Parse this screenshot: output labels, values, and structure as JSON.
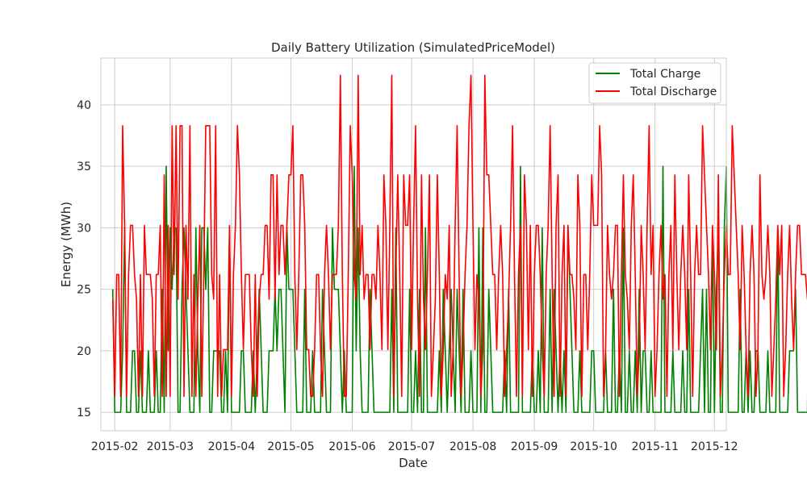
{
  "chart_data": {
    "type": "line",
    "title": "Daily Battery Utilization (SimulatedPriceModel)",
    "xlabel": "Date",
    "ylabel": "Energy (MWh)",
    "x_start": "2015-01-31",
    "x_end": "2015-12-01",
    "xlim": [
      "2015-01-25",
      "2015-12-07"
    ],
    "ylim": [
      13.5,
      43.8
    ],
    "x_ticks": [
      {
        "date": "2015-02-01",
        "label": "2015-02"
      },
      {
        "date": "2015-03-01",
        "label": "2015-03"
      },
      {
        "date": "2015-04-01",
        "label": "2015-04"
      },
      {
        "date": "2015-05-01",
        "label": "2015-05"
      },
      {
        "date": "2015-06-01",
        "label": "2015-06"
      },
      {
        "date": "2015-07-01",
        "label": "2015-07"
      },
      {
        "date": "2015-08-01",
        "label": "2015-08"
      },
      {
        "date": "2015-09-01",
        "label": "2015-09"
      },
      {
        "date": "2015-10-01",
        "label": "2015-10"
      },
      {
        "date": "2015-11-01",
        "label": "2015-11"
      },
      {
        "date": "2015-12-01",
        "label": "2015-12"
      }
    ],
    "y_ticks": [
      15,
      20,
      25,
      30,
      35,
      40
    ],
    "grid": true,
    "legend_position": "top-right",
    "series": [
      {
        "name": "Total Charge",
        "color": "#008000",
        "values": [
          25,
          15,
          15,
          15,
          15,
          20,
          30,
          15,
          15,
          15,
          20,
          20,
          15,
          15,
          20,
          15,
          15,
          15,
          20,
          15,
          15,
          15,
          20,
          15,
          15,
          25,
          15,
          35,
          20,
          30,
          25,
          30,
          30,
          15,
          15,
          25,
          30,
          25,
          20,
          15,
          15,
          15,
          30,
          20,
          15,
          30,
          30,
          25,
          30,
          15,
          15,
          20,
          20,
          20,
          20,
          15,
          15,
          20,
          15,
          30,
          15,
          15,
          15,
          15,
          15,
          20,
          20,
          15,
          15,
          15,
          15,
          20,
          15,
          20,
          25,
          20,
          15,
          15,
          15,
          20,
          20,
          20,
          25,
          20,
          25,
          25,
          20,
          15,
          30,
          25,
          25,
          25,
          20,
          15,
          15,
          15,
          15,
          25,
          15,
          15,
          15,
          20,
          15,
          15,
          15,
          15,
          25,
          20,
          15,
          15,
          15,
          30,
          25,
          25,
          25,
          20,
          15,
          20,
          15,
          15,
          15,
          15,
          35,
          20,
          30,
          20,
          15,
          15,
          15,
          15,
          25,
          20,
          15,
          15,
          15,
          15,
          15,
          15,
          15,
          15,
          15,
          25,
          15,
          30,
          15,
          15,
          15,
          15,
          15,
          15,
          25,
          15,
          15,
          20,
          15,
          25,
          15,
          15,
          30,
          15,
          15,
          15,
          15,
          15,
          15,
          20,
          15,
          25,
          20,
          15,
          20,
          25,
          20,
          15,
          25,
          20,
          15,
          25,
          15,
          15,
          15,
          20,
          15,
          15,
          15,
          30,
          15,
          30,
          15,
          15,
          25,
          20,
          15,
          15,
          15,
          15,
          15,
          15,
          20,
          15,
          25,
          15,
          15,
          15,
          15,
          15,
          35,
          15,
          15,
          15,
          15,
          15,
          20,
          15,
          15,
          20,
          15,
          30,
          15,
          15,
          15,
          25,
          15,
          25,
          20,
          15,
          20,
          15,
          20,
          15,
          30,
          25,
          20,
          15,
          15,
          15,
          20,
          15,
          15,
          15,
          15,
          15,
          20,
          20,
          15,
          15,
          15,
          15,
          15,
          20,
          15,
          15,
          15,
          25,
          15,
          15,
          20,
          15,
          30,
          15,
          15,
          20,
          15,
          15,
          20,
          15,
          25,
          15,
          20,
          20,
          15,
          15,
          20,
          15,
          15,
          15,
          15,
          15,
          35,
          15,
          15,
          15,
          15,
          20,
          15,
          15,
          15,
          15,
          20,
          15,
          15,
          25,
          15,
          15,
          15,
          15,
          15,
          20,
          25,
          15,
          25,
          15,
          15,
          30,
          15,
          25,
          30,
          15,
          15,
          30,
          35,
          15,
          15,
          15,
          15,
          15,
          15,
          25,
          15,
          15,
          20,
          15,
          20,
          15,
          15,
          20,
          20,
          15,
          15,
          15,
          15,
          20,
          15,
          15,
          15,
          15,
          30,
          15,
          15,
          15,
          15,
          15,
          20,
          20,
          20,
          25,
          15,
          15,
          15,
          15,
          15,
          15,
          30,
          15,
          15,
          15,
          20,
          15,
          15,
          25,
          15,
          15,
          15,
          15,
          20,
          20,
          15,
          20,
          15,
          15,
          15,
          15,
          15,
          15,
          20,
          20,
          25,
          15,
          30,
          15,
          20,
          20,
          15,
          15,
          15,
          15,
          15,
          15,
          15,
          20,
          15,
          15
        ]
      },
      {
        "name": "Total Discharge",
        "color": "#ff0000",
        "values": [
          24.2,
          16.3,
          26.2,
          26.2,
          16.3,
          38.3,
          30.2,
          16.3,
          26.2,
          30.2,
          30.2,
          26.2,
          24.2,
          16.3,
          26.2,
          16.3,
          30.2,
          26.2,
          26.2,
          26.2,
          24.2,
          16.3,
          26.2,
          26.2,
          30.2,
          16.3,
          34.3,
          16.3,
          30.2,
          16.3,
          38.3,
          26.2,
          38.3,
          24.2,
          38.3,
          38.3,
          16.3,
          30.2,
          24.2,
          38.3,
          16.3,
          26.2,
          16.3,
          24.2,
          30.2,
          16.3,
          26.2,
          38.3,
          38.3,
          38.3,
          26.2,
          24.2,
          38.3,
          16.3,
          26.2,
          16.3,
          20.1,
          20.1,
          20.1,
          30.2,
          16.3,
          26.2,
          30.2,
          38.3,
          34.3,
          26.2,
          20.1,
          26.2,
          26.2,
          26.2,
          20.1,
          16.3,
          26.2,
          16.3,
          24.2,
          26.2,
          26.2,
          30.2,
          30.2,
          24.2,
          34.3,
          34.3,
          24.2,
          34.3,
          26.2,
          30.2,
          30.2,
          26.2,
          30.2,
          34.3,
          34.3,
          38.3,
          26.2,
          20.1,
          26.2,
          34.3,
          34.3,
          30.2,
          20.1,
          20.1,
          16.3,
          16.3,
          20.1,
          26.2,
          26.2,
          20.1,
          16.3,
          26.2,
          30.2,
          26.2,
          20.1,
          26.2,
          26.2,
          26.2,
          30.2,
          42.4,
          26.2,
          16.3,
          16.3,
          26.2,
          38.3,
          34.3,
          26.2,
          24.2,
          42.4,
          26.2,
          30.2,
          24.2,
          26.2,
          26.2,
          20.1,
          26.2,
          26.2,
          24.2,
          30.2,
          26.2,
          20.1,
          34.3,
          30.2,
          20.1,
          30.2,
          42.4,
          16.3,
          26.2,
          34.3,
          26.2,
          16.3,
          34.3,
          30.2,
          30.2,
          34.3,
          20.1,
          30.2,
          38.3,
          24.2,
          16.3,
          34.3,
          24.2,
          20.1,
          26.2,
          34.3,
          16.3,
          20.1,
          24.2,
          34.3,
          26.2,
          16.3,
          20.1,
          26.2,
          24.2,
          30.2,
          16.3,
          20.1,
          30.2,
          38.3,
          26.2,
          16.3,
          20.1,
          26.2,
          30.2,
          38.3,
          42.4,
          30.2,
          20.1,
          26.2,
          24.2,
          16.3,
          20.1,
          42.4,
          34.3,
          34.3,
          30.2,
          26.2,
          26.2,
          20.1,
          26.2,
          30.2,
          26.2,
          16.3,
          20.1,
          24.2,
          30.2,
          38.3,
          26.2,
          16.3,
          26.2,
          30.2,
          16.3,
          34.3,
          30.2,
          20.1,
          30.2,
          16.3,
          26.2,
          30.2,
          30.2,
          26.2,
          20.1,
          16.3,
          26.2,
          30.2,
          38.3,
          26.2,
          16.3,
          30.2,
          34.3,
          16.3,
          26.2,
          30.2,
          16.3,
          30.2,
          26.2,
          26.2,
          24.2,
          20.1,
          34.3,
          30.2,
          16.3,
          26.2,
          26.2,
          20.1,
          26.2,
          34.3,
          30.2,
          30.2,
          30.2,
          38.3,
          34.3,
          16.3,
          20.1,
          30.2,
          26.2,
          24.2,
          26.2,
          30.2,
          30.2,
          16.3,
          26.2,
          34.3,
          26.2,
          24.2,
          20.1,
          30.2,
          34.3,
          26.2,
          16.3,
          20.1,
          30.2,
          26.2,
          20.1,
          30.2,
          38.3,
          26.2,
          30.2,
          16.3,
          20.1,
          26.2,
          30.2,
          24.2,
          26.2,
          16.3,
          26.2,
          30.2,
          20.1,
          34.3,
          26.2,
          20.1,
          26.2,
          30.2,
          26.2,
          20.1,
          34.3,
          26.2,
          16.3,
          26.2,
          30.2,
          26.2,
          26.2,
          38.3,
          34.3,
          30.2,
          26.2,
          20.1,
          30.2,
          26.2,
          20.1,
          34.3,
          16.3,
          20.1,
          26.2,
          30.2,
          26.2,
          26.2,
          38.3,
          34.3,
          30.2,
          26.2,
          20.1,
          30.2,
          26.2,
          20.1,
          16.3,
          26.2,
          30.2,
          26.2,
          16.3,
          20.1,
          34.3,
          26.2,
          24.2,
          26.2,
          30.2,
          26.2,
          16.3,
          20.1,
          24.2,
          30.2,
          26.2,
          30.2,
          16.3,
          20.1,
          26.2,
          30.2,
          24.2,
          20.1,
          26.2,
          30.2,
          30.2,
          26.2,
          26.2,
          26.2,
          24.2,
          34.3,
          26.2,
          16.3,
          26.2,
          26.2
        ]
      }
    ]
  }
}
